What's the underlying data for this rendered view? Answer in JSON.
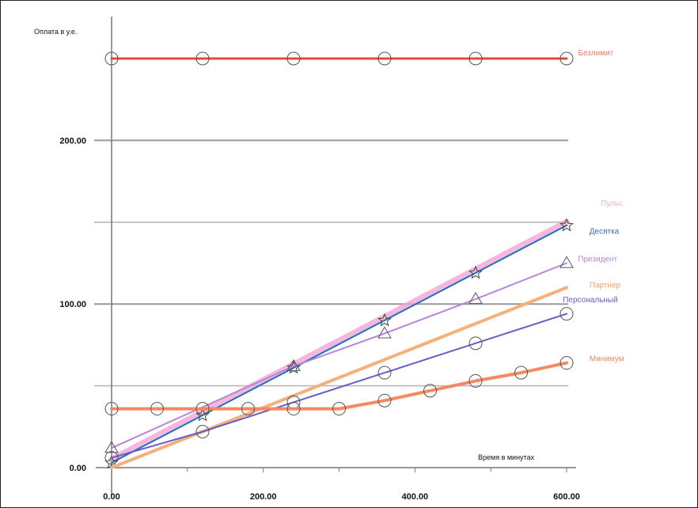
{
  "chart_data": {
    "type": "line",
    "xlabel": "Время в минутах",
    "ylabel": "Оплата в у.е.",
    "xlim": [
      0,
      600
    ],
    "ylim": [
      0,
      250
    ],
    "x_ticks": [
      "0.00",
      "200.00",
      "400.00",
      "600.00"
    ],
    "y_ticks": [
      "0.00",
      "100.00",
      "200.00"
    ],
    "gridlines_y": [
      50,
      100,
      150,
      200,
      250
    ],
    "grid_colors": {
      "major": "#9a9a9a",
      "minor": "#b8b8b8"
    },
    "series": [
      {
        "name": "Безлимит",
        "color": "#e8483a",
        "width": 3,
        "marker": "circle",
        "x": [
          0,
          120,
          240,
          360,
          480,
          600
        ],
        "y": [
          250,
          250,
          250,
          250,
          250,
          250
        ]
      },
      {
        "name": "Пульс",
        "color": "#f2a0d0",
        "width": 8,
        "marker": "none",
        "x": [
          0,
          600
        ],
        "y": [
          5,
          150
        ]
      },
      {
        "name": "Десятка",
        "color": "#1f6fc0",
        "width": 2,
        "marker": "star",
        "x": [
          0,
          120,
          240,
          360,
          480,
          600
        ],
        "y": [
          3,
          32,
          61,
          90,
          119,
          148
        ]
      },
      {
        "name": "Президент",
        "color": "#b884d8",
        "width": 2,
        "marker": "triangle",
        "x": [
          0,
          240,
          360,
          480,
          600
        ],
        "y": [
          12,
          62,
          82,
          103,
          125
        ]
      },
      {
        "name": "Партнёр",
        "color": "#f6b07a",
        "width": 4,
        "marker": "none",
        "x": [
          0,
          600
        ],
        "y": [
          0,
          110
        ]
      },
      {
        "name": "Персональный",
        "color": "#6a5cc8",
        "width": 2,
        "marker": "circle",
        "x": [
          0,
          120,
          240,
          360,
          480,
          600
        ],
        "y": [
          6,
          22,
          40,
          58,
          76,
          94
        ]
      },
      {
        "name": "Минимум",
        "color": "#f58860",
        "width": 4,
        "marker": "circle",
        "x": [
          0,
          60,
          120,
          180,
          240,
          300,
          360,
          420,
          480,
          540,
          600
        ],
        "y": [
          36,
          36,
          36,
          36,
          36,
          36,
          41,
          47,
          53,
          58,
          64
        ]
      }
    ],
    "annotations": [
      {
        "text": "Безлимит",
        "color": "#f47c6a",
        "x": 615,
        "y": 252
      },
      {
        "text": "Пульс",
        "color": "#f5a8cf",
        "x": 645,
        "y": 160
      },
      {
        "text": "Десятка",
        "color": "#2a6fd0",
        "x": 630,
        "y": 143
      },
      {
        "text": "Президент",
        "color": "#b884d8",
        "x": 615,
        "y": 126
      },
      {
        "text": "Партнёр",
        "color": "#f8a060",
        "x": 630,
        "y": 110
      },
      {
        "text": "Персональный",
        "color": "#6a5cc8",
        "x": 595,
        "y": 101
      },
      {
        "text": "Минимум",
        "color": "#f58860",
        "x": 630,
        "y": 65
      }
    ]
  }
}
